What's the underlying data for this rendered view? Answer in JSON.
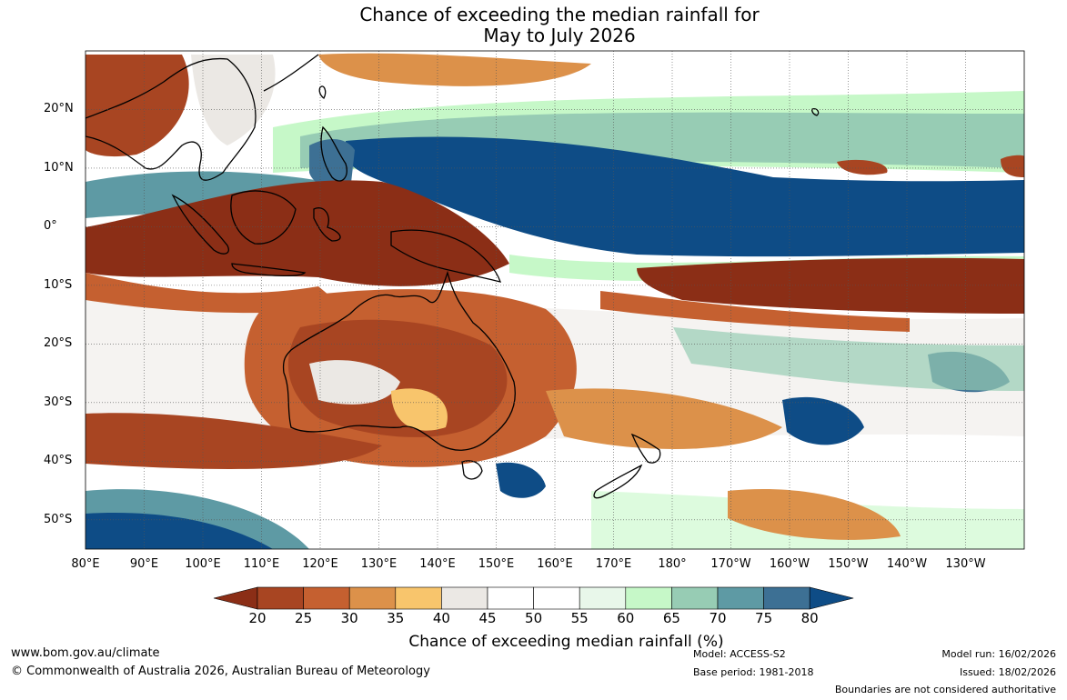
{
  "title": {
    "line1": "Chance of exceeding the median rainfall for",
    "line2": "May to July 2026"
  },
  "map": {
    "latitude_labels": [
      "20°N",
      "10°N",
      "0°",
      "10°S",
      "20°S",
      "30°S",
      "40°S",
      "50°S"
    ],
    "longitude_labels": [
      "80°E",
      "90°E",
      "100°E",
      "110°E",
      "120°E",
      "130°E",
      "140°E",
      "150°E",
      "160°E",
      "170°E",
      "180°",
      "170°W",
      "160°W",
      "150°W",
      "140°W",
      "130°W"
    ],
    "extent": {
      "lon_min": 80,
      "lon_max": 240,
      "lat_min": -55,
      "lat_max": 30
    }
  },
  "colorbar": {
    "ticks": [
      "20",
      "25",
      "30",
      "35",
      "40",
      "45",
      "50",
      "55",
      "60",
      "65",
      "70",
      "75",
      "80"
    ],
    "colors": [
      "#8b2e16",
      "#a84522",
      "#c56030",
      "#dc914a",
      "#f8c56c",
      "#ebe8e4",
      "#ffffff",
      "#ffffff",
      "#e8f7ea",
      "#c6f8c8",
      "#97ccb4",
      "#5e9aa4",
      "#3d7094",
      "#0e4c86"
    ],
    "label": "Chance of exceeding median rainfall (%)"
  },
  "footer": {
    "website": "www.bom.gov.au/climate",
    "copyright": "© Commonwealth of Australia 2026, Australian Bureau of Meteorology",
    "model": "Model: ACCESS-S2",
    "base_period": "Base period: 1981-2018",
    "model_run": "Model run: 16/02/2026",
    "issued": "Issued: 18/02/2026",
    "disclaimer": "Boundaries are not considered authoritative"
  }
}
